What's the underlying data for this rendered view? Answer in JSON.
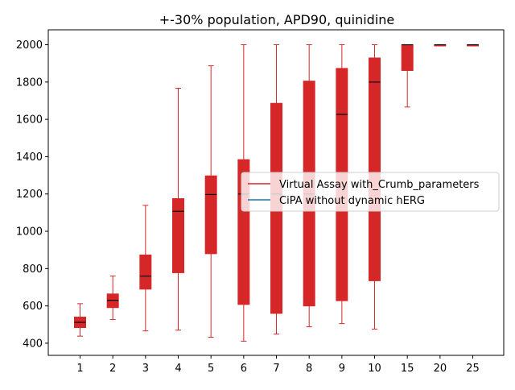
{
  "chart_data": {
    "type": "box",
    "title": "+-30% population, APD90, quinidine",
    "xlabel": "",
    "ylabel": "",
    "categories": [
      "1",
      "2",
      "3",
      "4",
      "5",
      "6",
      "7",
      "8",
      "9",
      "10",
      "15",
      "20",
      "25"
    ],
    "ylim": [
      335,
      2080
    ],
    "yticks": [
      400,
      600,
      800,
      1000,
      1200,
      1400,
      1600,
      1800,
      2000
    ],
    "grid": false,
    "legend_position": "center-right",
    "series": [
      {
        "name": "Virtual Assay with_Crumb_parameters",
        "color": "#d62728",
        "boxes": [
          {
            "whisker_low": 438,
            "q1": 484,
            "median": 512,
            "q3": 540,
            "whisker_high": 612
          },
          {
            "whisker_low": 527,
            "q1": 591,
            "median": 630,
            "q3": 664,
            "whisker_high": 760
          },
          {
            "whisker_low": 466,
            "q1": 690,
            "median": 760,
            "q3": 873,
            "whisker_high": 1139
          },
          {
            "whisker_low": 470,
            "q1": 778,
            "median": 1107,
            "q3": 1175,
            "whisker_high": 1767
          },
          {
            "whisker_low": 432,
            "q1": 880,
            "median": 1197,
            "q3": 1297,
            "whisker_high": 1887
          },
          {
            "whisker_low": 411,
            "q1": 608,
            "median": 1200,
            "q3": 1384,
            "whisker_high": 2000
          },
          {
            "whisker_low": 449,
            "q1": 560,
            "median": 1200,
            "q3": 1686,
            "whisker_high": 2000
          },
          {
            "whisker_low": 488,
            "q1": 600,
            "median": 1200,
            "q3": 1805,
            "whisker_high": 2000
          },
          {
            "whisker_low": 505,
            "q1": 628,
            "median": 1627,
            "q3": 1873,
            "whisker_high": 2000
          },
          {
            "whisker_low": 476,
            "q1": 735,
            "median": 1800,
            "q3": 1929,
            "whisker_high": 2000
          },
          {
            "whisker_low": 1666,
            "q1": 1862,
            "median": 2000,
            "q3": 2000,
            "whisker_high": 2000
          },
          {
            "whisker_low": 2000,
            "q1": 2000,
            "median": 2000,
            "q3": 2000,
            "whisker_high": 2000
          },
          {
            "whisker_low": 2000,
            "q1": 2000,
            "median": 2000,
            "q3": 2000,
            "whisker_high": 2000
          }
        ]
      },
      {
        "name": "CiPA without dynamic hERG",
        "color": "#1f77b4",
        "boxes": []
      }
    ]
  }
}
